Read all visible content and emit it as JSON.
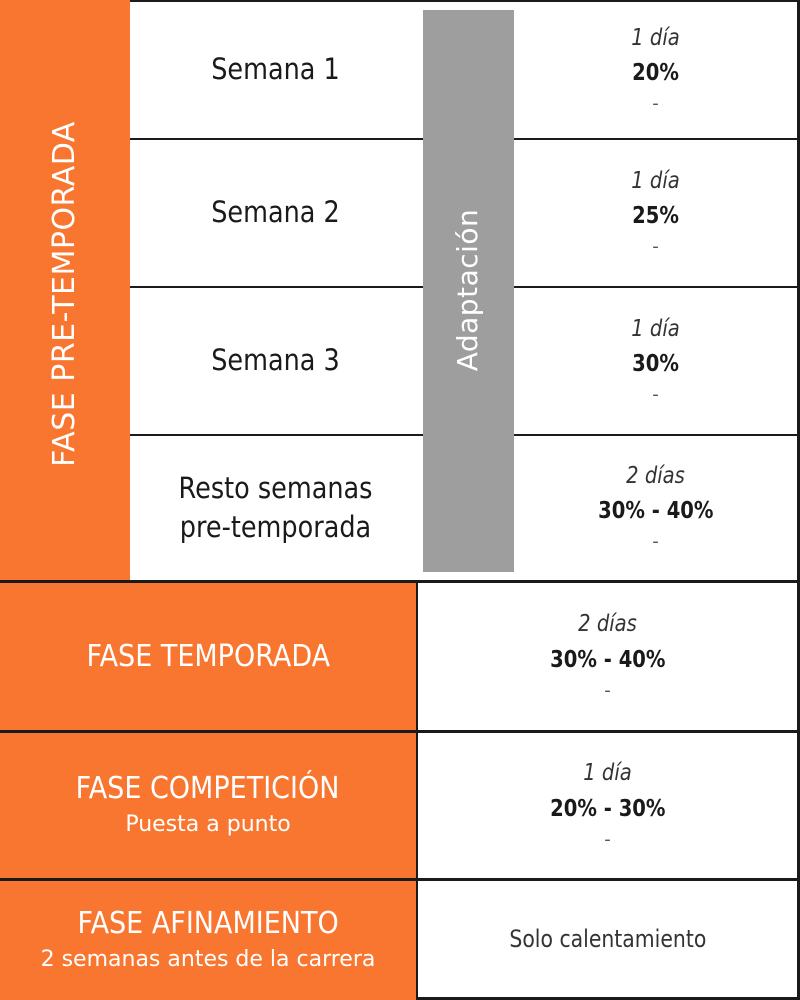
{
  "preseason": {
    "title": "FASE PRE-TEMPORADA",
    "adaptation_label": "Adaptación",
    "weeks": [
      {
        "label": "Semana 1",
        "days": "1 día",
        "percent": "20%",
        "note": "-"
      },
      {
        "label": "Semana 2",
        "days": "1 día",
        "percent": "25%",
        "note": "-"
      },
      {
        "label": "Semana 3",
        "days": "1 día",
        "percent": "30%",
        "note": "-"
      },
      {
        "label": "Resto semanas pre-temporada",
        "days": "2 días",
        "percent": "30% - 40%",
        "note": "-"
      }
    ]
  },
  "season": {
    "title": "FASE TEMPORADA",
    "days": "2 días",
    "percent": "30% - 40%",
    "note": "-"
  },
  "competition": {
    "title": "FASE COMPETICIÓN",
    "subtitle": "Puesta a punto",
    "days": "1 día",
    "percent": "20% - 30%",
    "note": "-"
  },
  "tapering": {
    "title": "FASE AFINAMIENTO",
    "subtitle": "2 semanas antes de la carrera",
    "detail": "Solo calentamiento"
  },
  "colors": {
    "accent": "#f8762f",
    "adaptation_bar": "#9e9e9e"
  }
}
